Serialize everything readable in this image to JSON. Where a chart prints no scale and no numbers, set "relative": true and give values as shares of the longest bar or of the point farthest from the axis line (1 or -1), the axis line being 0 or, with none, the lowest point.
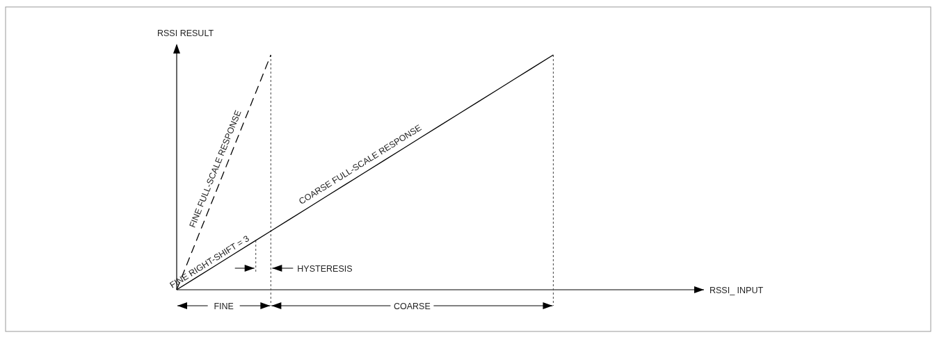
{
  "chart_data": {
    "type": "line",
    "relative": true,
    "xlabel": "RSSI_ INPUT",
    "ylabel": "RSSI RESULT",
    "categories": [
      null,
      null,
      null,
      null,
      null,
      null,
      null,
      null,
      null,
      null,
      null,
      null,
      null,
      null,
      null,
      null,
      null,
      null,
      null,
      null,
      null,
      null,
      null,
      null,
      null,
      null,
      null,
      null,
      null
    ],
    "series": [
      {
        "name": "FINE FULL-SCALE RESPONSE",
        "color": "#000000",
        "line_style": "dashed",
        "values": [
          0,
          0.2,
          0.4,
          0.6,
          0.8,
          1,
          null,
          null,
          null,
          null,
          null,
          null,
          null,
          null,
          null,
          null,
          null,
          null,
          null,
          null,
          null,
          null,
          null,
          null,
          null,
          null,
          null,
          null,
          null
        ]
      },
      {
        "name": "COARSE FULL-SCALE RESPONSE",
        "color": "#000000",
        "line_style": "solid",
        "values": [
          0,
          0.05,
          0.1,
          0.15,
          0.2,
          0.25,
          0.3,
          0.35,
          0.4,
          0.45,
          0.5,
          0.55,
          0.6,
          0.65,
          0.7,
          0.75,
          0.8,
          0.85,
          0.9,
          0.95,
          1,
          null,
          null,
          null,
          null,
          null,
          null,
          null,
          null
        ]
      }
    ],
    "annotations": [
      "FINE RIGHT-SHIFT = 3",
      "HYSTERESIS",
      "FINE",
      "COARSE"
    ]
  }
}
